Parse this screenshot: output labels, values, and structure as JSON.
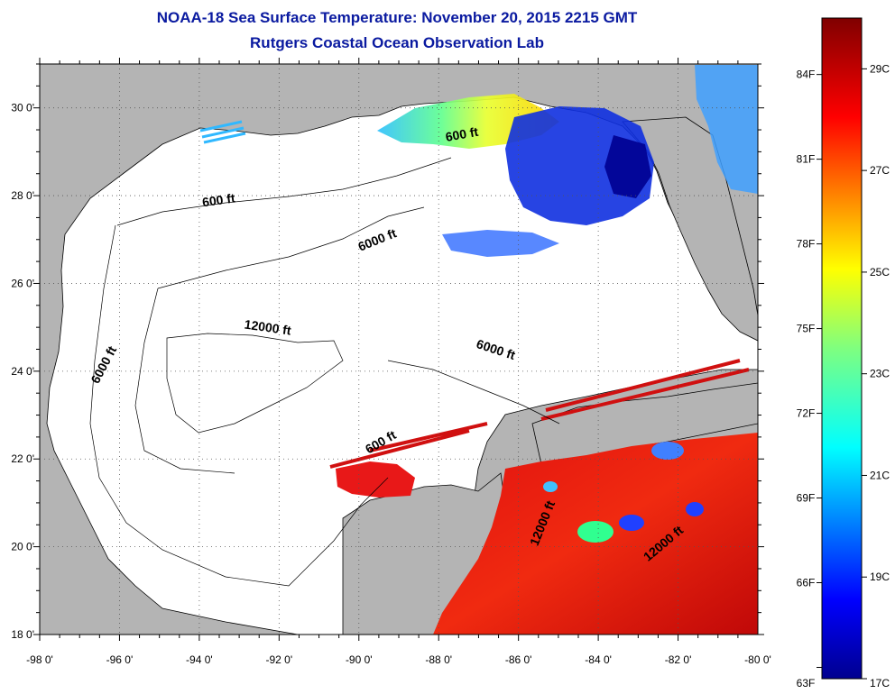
{
  "title": "NOAA-18 Sea Surface Temperature:  November 20, 2015 2215 GMT",
  "subtitle": "Rutgers Coastal Ocean Observation Lab",
  "lat_ticks": [
    "30 0'",
    "28 0'",
    "26 0'",
    "24 0'",
    "22 0'",
    "20 0'",
    "18 0'"
  ],
  "lon_ticks": [
    "-98 0'",
    "-96 0'",
    "-94 0'",
    "-92 0'",
    "-90 0'",
    "-88 0'",
    "-86 0'",
    "-84 0'",
    "-82 0'",
    "-80 0'"
  ],
  "contour_labels": [
    {
      "text": "600 ft",
      "lon": -93.5,
      "lat": 27.8,
      "rotate": -8
    },
    {
      "text": "600 ft",
      "lon": -87.4,
      "lat": 29.3,
      "rotate": -10
    },
    {
      "text": "6000 ft",
      "lon": -89.5,
      "lat": 26.9,
      "rotate": -22
    },
    {
      "text": "6000 ft",
      "lon": -96.3,
      "lat": 24.1,
      "rotate": -62
    },
    {
      "text": "6000 ft",
      "lon": -86.6,
      "lat": 24.4,
      "rotate": 18
    },
    {
      "text": "12000 ft",
      "lon": -92.3,
      "lat": 24.9,
      "rotate": 8
    },
    {
      "text": "600 ft",
      "lon": -89.4,
      "lat": 22.3,
      "rotate": -30
    },
    {
      "text": "12000 ft",
      "lon": -85.3,
      "lat": 20.5,
      "rotate": -68
    },
    {
      "text": "12000 ft",
      "lon": -82.3,
      "lat": 20.0,
      "rotate": -40
    }
  ],
  "colorbar": {
    "f_labels": [
      "84F",
      "81F",
      "78F",
      "75F",
      "72F",
      "69F",
      "66F",
      "63F"
    ],
    "c_labels": [
      "29C",
      "27C",
      "25C",
      "23C",
      "21C",
      "19C",
      "17C"
    ],
    "min_c": 17,
    "max_c": 30
  },
  "colors": {
    "land": "#b4b4b4",
    "ocean": "#ffffff",
    "title": "#0a1aa0"
  }
}
